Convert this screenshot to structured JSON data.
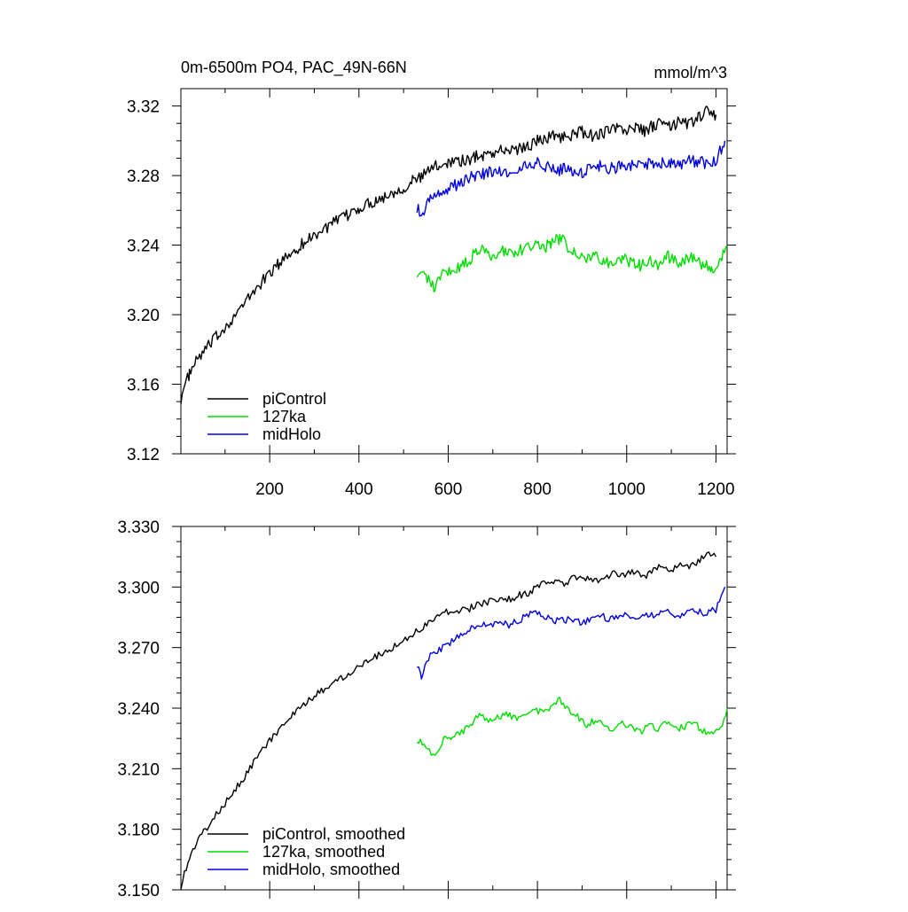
{
  "chart_data": [
    {
      "type": "line",
      "title": "0m-6500m PO4, PAC_49N-66N",
      "units": "mmol/m^3",
      "xlim": [
        1,
        1225
      ],
      "ylim": [
        3.12,
        3.33
      ],
      "x_ticks": [
        200,
        400,
        600,
        800,
        1000,
        1200
      ],
      "y_ticks": [
        3.12,
        3.16,
        3.2,
        3.24,
        3.28,
        3.32
      ],
      "y_tick_labels": [
        "3.12",
        "3.16",
        "3.20",
        "3.24",
        "3.28",
        "3.32"
      ],
      "legend_position": "bottom-left",
      "series": [
        {
          "name": "piControl",
          "color": "#000000",
          "x": [
            1,
            20,
            40,
            60,
            80,
            100,
            120,
            140,
            160,
            180,
            200,
            220,
            240,
            260,
            280,
            300,
            320,
            340,
            360,
            380,
            400,
            420,
            440,
            460,
            480,
            500,
            520,
            540,
            560,
            580,
            600,
            620,
            640,
            660,
            680,
            700,
            720,
            740,
            760,
            780,
            800,
            820,
            840,
            860,
            880,
            900,
            920,
            940,
            960,
            980,
            1000,
            1020,
            1040,
            1060,
            1080,
            1100,
            1120,
            1140,
            1160,
            1180,
            1200
          ],
          "y": [
            3.152,
            3.166,
            3.175,
            3.181,
            3.187,
            3.193,
            3.199,
            3.205,
            3.212,
            3.218,
            3.224,
            3.229,
            3.234,
            3.238,
            3.242,
            3.246,
            3.249,
            3.252,
            3.255,
            3.258,
            3.261,
            3.264,
            3.266,
            3.268,
            3.271,
            3.273,
            3.277,
            3.279,
            3.284,
            3.286,
            3.288,
            3.289,
            3.288,
            3.291,
            3.292,
            3.293,
            3.295,
            3.294,
            3.296,
            3.297,
            3.3,
            3.302,
            3.303,
            3.302,
            3.304,
            3.305,
            3.303,
            3.304,
            3.306,
            3.307,
            3.306,
            3.308,
            3.305,
            3.309,
            3.31,
            3.308,
            3.311,
            3.31,
            3.313,
            3.317,
            3.315
          ]
        },
        {
          "name": "127ka",
          "color": "#00dd00",
          "x": [
            530,
            550,
            570,
            590,
            610,
            630,
            650,
            670,
            690,
            710,
            730,
            750,
            770,
            790,
            810,
            830,
            850,
            870,
            890,
            910,
            930,
            950,
            970,
            990,
            1010,
            1030,
            1050,
            1070,
            1090,
            1110,
            1130,
            1150,
            1170,
            1190,
            1210,
            1225
          ],
          "y": [
            3.225,
            3.222,
            3.216,
            3.224,
            3.226,
            3.228,
            3.232,
            3.238,
            3.234,
            3.236,
            3.237,
            3.235,
            3.238,
            3.24,
            3.238,
            3.241,
            3.244,
            3.239,
            3.236,
            3.232,
            3.234,
            3.231,
            3.229,
            3.233,
            3.23,
            3.228,
            3.232,
            3.229,
            3.234,
            3.23,
            3.231,
            3.233,
            3.229,
            3.227,
            3.23,
            3.24
          ]
        },
        {
          "name": "midHolo",
          "color": "#0000dd",
          "x": [
            530,
            540,
            560,
            580,
            600,
            620,
            640,
            660,
            680,
            700,
            720,
            740,
            760,
            780,
            800,
            820,
            840,
            860,
            880,
            900,
            920,
            940,
            960,
            980,
            1000,
            1020,
            1040,
            1060,
            1080,
            1100,
            1120,
            1140,
            1160,
            1180,
            1200,
            1220
          ],
          "y": [
            3.262,
            3.256,
            3.266,
            3.269,
            3.272,
            3.275,
            3.278,
            3.28,
            3.281,
            3.282,
            3.283,
            3.281,
            3.284,
            3.286,
            3.287,
            3.285,
            3.283,
            3.284,
            3.283,
            3.282,
            3.285,
            3.286,
            3.284,
            3.285,
            3.286,
            3.285,
            3.287,
            3.286,
            3.288,
            3.287,
            3.286,
            3.289,
            3.288,
            3.287,
            3.289,
            3.3
          ]
        }
      ]
    },
    {
      "type": "line",
      "title": "",
      "xlim": [
        1,
        1225
      ],
      "ylim": [
        3.15,
        3.33
      ],
      "x_ticks": [
        200,
        400,
        600,
        800,
        1000,
        1200
      ],
      "y_ticks": [
        3.15,
        3.18,
        3.21,
        3.24,
        3.27,
        3.3,
        3.33
      ],
      "y_tick_labels": [
        "3.150",
        "3.180",
        "3.210",
        "3.240",
        "3.270",
        "3.300",
        "3.330"
      ],
      "legend_position": "bottom-left",
      "series": [
        {
          "name": "piControl, smoothed",
          "color": "#000000",
          "x": [
            1,
            20,
            40,
            60,
            80,
            100,
            120,
            140,
            160,
            180,
            200,
            220,
            240,
            260,
            280,
            300,
            320,
            340,
            360,
            380,
            400,
            420,
            440,
            460,
            480,
            500,
            520,
            540,
            560,
            580,
            600,
            620,
            640,
            660,
            680,
            700,
            720,
            740,
            760,
            780,
            800,
            820,
            840,
            860,
            880,
            900,
            920,
            940,
            960,
            980,
            1000,
            1020,
            1040,
            1060,
            1080,
            1100,
            1120,
            1140,
            1160,
            1180,
            1200
          ],
          "y": [
            3.152,
            3.166,
            3.175,
            3.181,
            3.187,
            3.193,
            3.199,
            3.205,
            3.212,
            3.218,
            3.224,
            3.229,
            3.234,
            3.238,
            3.242,
            3.246,
            3.249,
            3.252,
            3.255,
            3.258,
            3.261,
            3.264,
            3.266,
            3.268,
            3.271,
            3.273,
            3.277,
            3.279,
            3.284,
            3.286,
            3.288,
            3.289,
            3.288,
            3.291,
            3.292,
            3.293,
            3.295,
            3.294,
            3.296,
            3.297,
            3.3,
            3.302,
            3.303,
            3.302,
            3.304,
            3.305,
            3.303,
            3.304,
            3.306,
            3.307,
            3.306,
            3.308,
            3.305,
            3.309,
            3.31,
            3.308,
            3.311,
            3.31,
            3.313,
            3.317,
            3.315
          ]
        },
        {
          "name": "127ka, smoothed",
          "color": "#00dd00",
          "x": [
            530,
            550,
            570,
            590,
            610,
            630,
            650,
            670,
            690,
            710,
            730,
            750,
            770,
            790,
            810,
            830,
            850,
            870,
            890,
            910,
            930,
            950,
            970,
            990,
            1010,
            1030,
            1050,
            1070,
            1090,
            1110,
            1130,
            1150,
            1170,
            1190,
            1210,
            1225
          ],
          "y": [
            3.225,
            3.222,
            3.216,
            3.224,
            3.226,
            3.228,
            3.232,
            3.238,
            3.234,
            3.236,
            3.237,
            3.235,
            3.238,
            3.24,
            3.238,
            3.241,
            3.244,
            3.239,
            3.236,
            3.232,
            3.234,
            3.231,
            3.229,
            3.233,
            3.23,
            3.228,
            3.232,
            3.229,
            3.234,
            3.23,
            3.231,
            3.233,
            3.229,
            3.227,
            3.23,
            3.24
          ]
        },
        {
          "name": "midHolo, smoothed",
          "color": "#0000dd",
          "x": [
            530,
            540,
            560,
            580,
            600,
            620,
            640,
            660,
            680,
            700,
            720,
            740,
            760,
            780,
            800,
            820,
            840,
            860,
            880,
            900,
            920,
            940,
            960,
            980,
            1000,
            1020,
            1040,
            1060,
            1080,
            1100,
            1120,
            1140,
            1160,
            1180,
            1200,
            1220
          ],
          "y": [
            3.262,
            3.256,
            3.266,
            3.269,
            3.272,
            3.275,
            3.278,
            3.28,
            3.281,
            3.282,
            3.283,
            3.281,
            3.284,
            3.286,
            3.287,
            3.285,
            3.283,
            3.284,
            3.283,
            3.282,
            3.285,
            3.286,
            3.284,
            3.285,
            3.286,
            3.285,
            3.287,
            3.286,
            3.288,
            3.287,
            3.286,
            3.289,
            3.288,
            3.287,
            3.289,
            3.3
          ]
        }
      ]
    }
  ]
}
